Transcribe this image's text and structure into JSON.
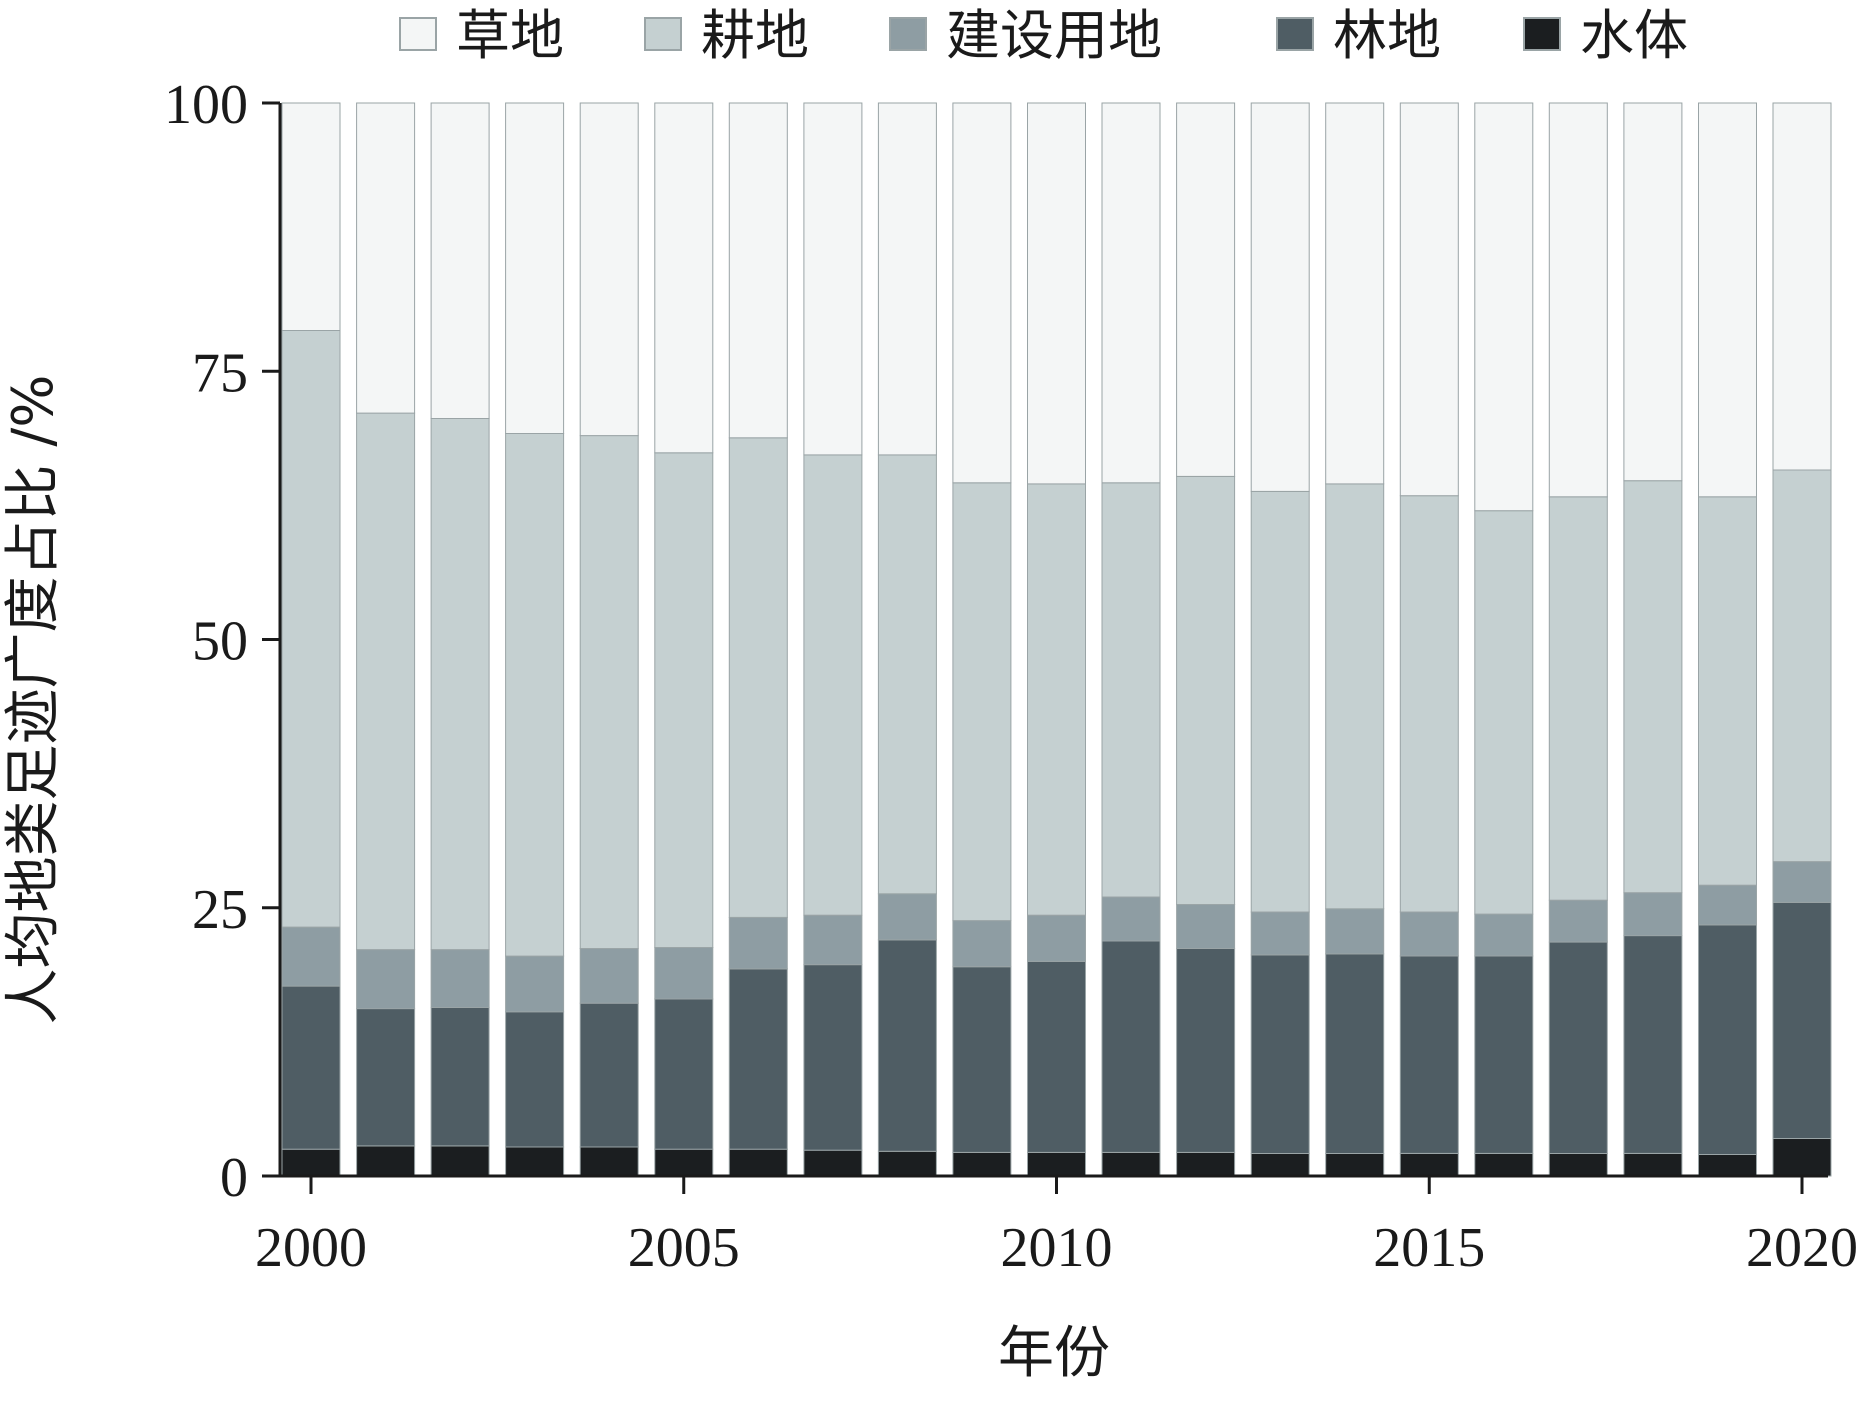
{
  "chart_data": {
    "type": "bar",
    "stacked": true,
    "xlabel": "年份",
    "ylabel": "人均地类足迹广度占比 /%",
    "ylim": [
      0,
      100
    ],
    "yticks": [
      "0",
      "25",
      "50",
      "75",
      "100"
    ],
    "xticks": [
      "2000",
      "2005",
      "2010",
      "2015",
      "2020"
    ],
    "legend_position": "top",
    "categories": [
      2000,
      2001,
      2002,
      2003,
      2004,
      2005,
      2006,
      2007,
      2008,
      2009,
      2010,
      2011,
      2012,
      2013,
      2014,
      2015,
      2016,
      2017,
      2018,
      2019,
      2020
    ],
    "series": [
      {
        "name": "水体",
        "color": "#1b1e20",
        "values": [
          2.5,
          2.8,
          2.8,
          2.7,
          2.7,
          2.5,
          2.5,
          2.4,
          2.3,
          2.2,
          2.2,
          2.2,
          2.2,
          2.1,
          2.1,
          2.1,
          2.1,
          2.1,
          2.1,
          2.0,
          3.5
        ]
      },
      {
        "name": "林地",
        "color": "#4f5d64",
        "values": [
          15.2,
          12.8,
          12.9,
          12.6,
          13.4,
          14.0,
          16.8,
          17.3,
          19.7,
          17.3,
          17.8,
          19.7,
          19.0,
          18.5,
          18.6,
          18.4,
          18.4,
          19.7,
          20.3,
          21.4,
          22.0
        ]
      },
      {
        "name": "建设用地",
        "color": "#8e9da3",
        "values": [
          5.5,
          5.5,
          5.4,
          5.2,
          5.1,
          4.8,
          4.8,
          4.6,
          4.3,
          4.3,
          4.3,
          4.1,
          4.1,
          4.0,
          4.2,
          4.1,
          3.9,
          3.9,
          4.0,
          3.7,
          3.8
        ]
      },
      {
        "name": "耕地",
        "color": "#c5d0d1",
        "values": [
          55.6,
          50.0,
          49.5,
          48.7,
          47.8,
          46.1,
          44.7,
          42.9,
          40.9,
          40.8,
          40.2,
          38.6,
          39.9,
          39.2,
          39.6,
          38.8,
          37.6,
          37.6,
          38.4,
          36.2,
          36.5
        ]
      },
      {
        "name": "草地",
        "color": "#f4f6f6",
        "values": [
          21.2,
          28.9,
          29.4,
          30.8,
          31.0,
          32.6,
          31.2,
          32.8,
          32.8,
          35.4,
          35.5,
          35.4,
          34.8,
          36.2,
          35.5,
          36.6,
          38.0,
          36.7,
          35.2,
          36.7,
          34.2
        ]
      }
    ],
    "legend_order": [
      "草地",
      "耕地",
      "建设用地",
      "林地",
      "水体"
    ]
  }
}
